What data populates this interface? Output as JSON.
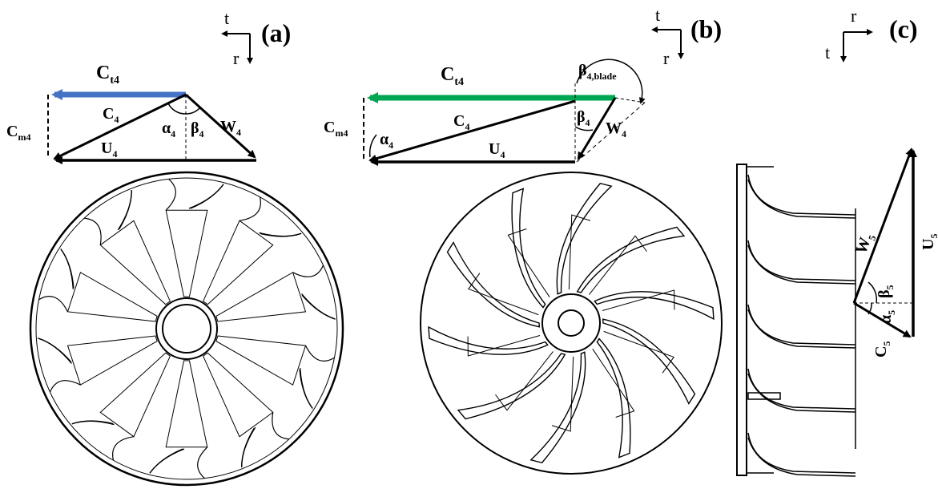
{
  "panels": [
    {
      "id": "a",
      "label": "(a)",
      "axes": {
        "horizontal": "t",
        "vertical": "r"
      },
      "vectors": {
        "ct": {
          "base": "C",
          "sub": "t4"
        },
        "cm": {
          "base": "C",
          "sub": "m4"
        },
        "c": {
          "base": "C",
          "sub": "4"
        },
        "u": {
          "base": "U",
          "sub": "4"
        },
        "w": {
          "base": "W",
          "sub": "4"
        },
        "alpha": {
          "base": "α",
          "sub": "4"
        },
        "beta": {
          "base": "β",
          "sub": "4"
        }
      },
      "blade_count": 10,
      "colors": {
        "ct_arrow": "#4472C4"
      }
    },
    {
      "id": "b",
      "label": "(b)",
      "axes": {
        "horizontal": "t",
        "vertical": "r"
      },
      "vectors": {
        "ct": {
          "base": "C",
          "sub": "t4"
        },
        "cm": {
          "base": "C",
          "sub": "m4"
        },
        "c": {
          "base": "C",
          "sub": "4"
        },
        "u": {
          "base": "U",
          "sub": "4"
        },
        "w": {
          "base": "W",
          "sub": "4"
        },
        "alpha": {
          "base": "α",
          "sub": "4"
        },
        "beta": {
          "base": "β",
          "sub": "4"
        },
        "beta_blade": {
          "base": "β",
          "sub": "4,blade"
        }
      },
      "blade_count": 10,
      "colors": {
        "ct_arrow": "#00A651"
      }
    },
    {
      "id": "c",
      "label": "(c)",
      "axes": {
        "horizontal": "r",
        "vertical": "t"
      },
      "vectors": {
        "w": {
          "base": "W",
          "sub": "5"
        },
        "u": {
          "base": "U",
          "sub": "5"
        },
        "c": {
          "base": "C",
          "sub": "5"
        },
        "alpha": {
          "base": "α",
          "sub": "5"
        },
        "beta": {
          "base": "β",
          "sub": "5"
        }
      }
    }
  ]
}
